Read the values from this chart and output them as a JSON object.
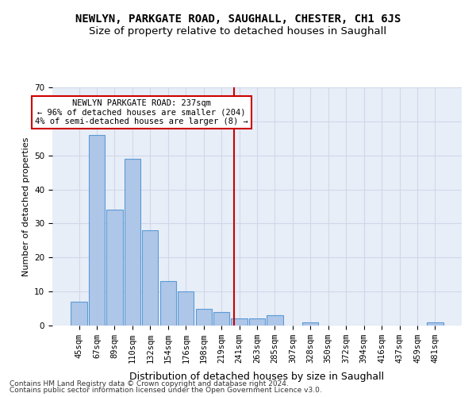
{
  "title": "NEWLYN, PARKGATE ROAD, SAUGHALL, CHESTER, CH1 6JS",
  "subtitle": "Size of property relative to detached houses in Saughall",
  "xlabel": "Distribution of detached houses by size in Saughall",
  "ylabel": "Number of detached properties",
  "categories": [
    "45sqm",
    "67sqm",
    "89sqm",
    "110sqm",
    "132sqm",
    "154sqm",
    "176sqm",
    "198sqm",
    "219sqm",
    "241sqm",
    "263sqm",
    "285sqm",
    "307sqm",
    "328sqm",
    "350sqm",
    "372sqm",
    "394sqm",
    "416sqm",
    "437sqm",
    "459sqm",
    "481sqm"
  ],
  "values": [
    7,
    56,
    34,
    49,
    28,
    13,
    10,
    5,
    4,
    2,
    2,
    3,
    0,
    1,
    0,
    0,
    0,
    0,
    0,
    0,
    1
  ],
  "bar_color": "#aec6e8",
  "bar_edge_color": "#5b9bd5",
  "vline_color": "#cc0000",
  "vline_pos": 8.72,
  "annotation_text": "NEWLYN PARKGATE ROAD: 237sqm\n← 96% of detached houses are smaller (204)\n4% of semi-detached houses are larger (8) →",
  "annotation_box_color": "#ffffff",
  "annotation_box_edge": "#cc0000",
  "ylim": [
    0,
    70
  ],
  "yticks": [
    0,
    10,
    20,
    30,
    40,
    50,
    60,
    70
  ],
  "grid_color": "#d0d8e8",
  "background_color": "#e8eef8",
  "footer1": "Contains HM Land Registry data © Crown copyright and database right 2024.",
  "footer2": "Contains public sector information licensed under the Open Government Licence v3.0.",
  "title_fontsize": 10,
  "subtitle_fontsize": 9.5,
  "xlabel_fontsize": 9,
  "ylabel_fontsize": 8,
  "tick_fontsize": 7.5,
  "annotation_fontsize": 7.5,
  "footer_fontsize": 6.5
}
